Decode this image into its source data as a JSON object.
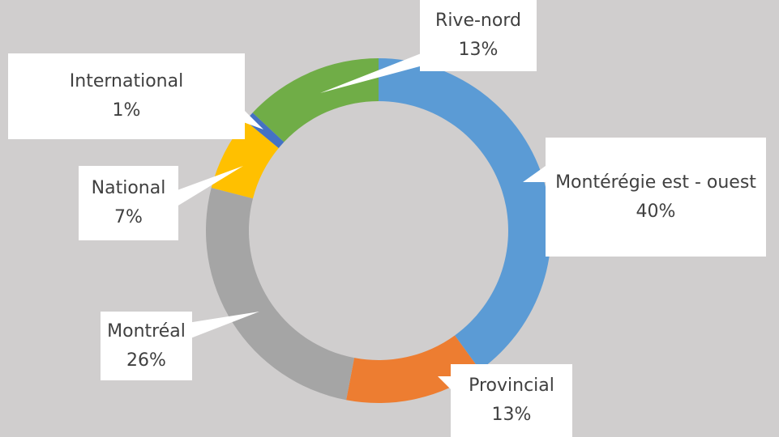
{
  "chart_data": {
    "type": "donut",
    "categories": [
      "Montérégie est - ouest",
      "Provincial",
      "Montréal",
      "National",
      "International",
      "Rive-nord"
    ],
    "values": [
      40,
      13,
      26,
      7,
      1,
      13
    ],
    "value_labels": [
      "40%",
      "13%",
      "26%",
      "7%",
      "1%",
      "13%"
    ],
    "colors": [
      "#5b9bd5",
      "#ed7d31",
      "#a5a5a5",
      "#ffc000",
      "#4472c4",
      "#70ad47"
    ]
  }
}
